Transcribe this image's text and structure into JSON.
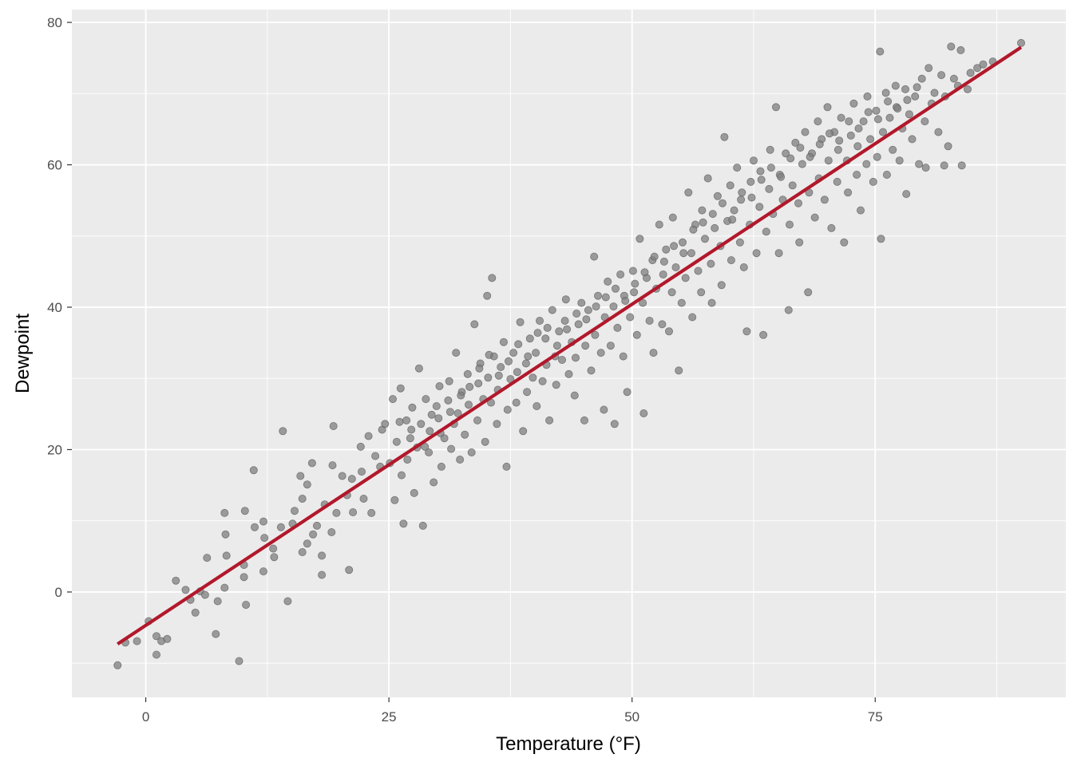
{
  "chart_data": {
    "type": "scatter",
    "title": "",
    "xlabel": "Temperature (°F)",
    "ylabel": "Dewpoint",
    "xlim": [
      -7.6,
      94.6
    ],
    "ylim": [
      -14.8,
      81.8
    ],
    "x_ticks": [
      0,
      25,
      50,
      75
    ],
    "y_ticks": [
      0,
      20,
      40,
      60,
      80
    ],
    "x_tick_labels": [
      "0",
      "25",
      "50",
      "75"
    ],
    "y_tick_labels": [
      "0",
      "20",
      "40",
      "60",
      "80"
    ],
    "grid": true,
    "legend": "none",
    "point_color": "#7f7f7f",
    "line_color": "#b2182b",
    "panel_background": "#ebebeb",
    "fit_line": {
      "type": "linear",
      "x": [
        -2.9,
        90.0
      ],
      "y": [
        -7.3,
        76.5
      ]
    },
    "points": [
      [
        -2.9,
        -10.3
      ],
      [
        -2.1,
        -7.1
      ],
      [
        -0.9,
        -6.9
      ],
      [
        0.3,
        -4.1
      ],
      [
        1.1,
        -6.2
      ],
      [
        1.1,
        -8.8
      ],
      [
        1.6,
        -6.9
      ],
      [
        2.2,
        -6.6
      ],
      [
        3.1,
        1.6
      ],
      [
        4.1,
        0.3
      ],
      [
        4.6,
        -1.1
      ],
      [
        5.1,
        -2.9
      ],
      [
        5.6,
        0.1
      ],
      [
        6.1,
        -0.4
      ],
      [
        6.3,
        4.8
      ],
      [
        7.2,
        -5.9
      ],
      [
        7.4,
        -1.3
      ],
      [
        8.1,
        11.1
      ],
      [
        8.2,
        8.1
      ],
      [
        8.3,
        5.1
      ],
      [
        8.1,
        0.6
      ],
      [
        9.6,
        -9.7
      ],
      [
        10.1,
        2.1
      ],
      [
        10.2,
        11.4
      ],
      [
        10.3,
        -1.8
      ],
      [
        10.1,
        3.8
      ],
      [
        11.1,
        17.1
      ],
      [
        11.2,
        9.1
      ],
      [
        12.1,
        9.9
      ],
      [
        12.2,
        7.6
      ],
      [
        12.1,
        2.9
      ],
      [
        13.1,
        6.1
      ],
      [
        13.2,
        4.9
      ],
      [
        13.9,
        9.1
      ],
      [
        14.1,
        22.6
      ],
      [
        14.6,
        -1.3
      ],
      [
        15.1,
        9.6
      ],
      [
        15.3,
        11.4
      ],
      [
        15.9,
        16.3
      ],
      [
        16.1,
        5.6
      ],
      [
        16.1,
        13.1
      ],
      [
        16.6,
        6.8
      ],
      [
        16.6,
        15.1
      ],
      [
        17.1,
        18.1
      ],
      [
        17.2,
        8.1
      ],
      [
        17.6,
        9.3
      ],
      [
        18.1,
        5.1
      ],
      [
        18.1,
        2.4
      ],
      [
        18.4,
        12.3
      ],
      [
        19.1,
        8.4
      ],
      [
        19.2,
        17.8
      ],
      [
        19.3,
        23.3
      ],
      [
        19.6,
        11.1
      ],
      [
        20.2,
        16.3
      ],
      [
        20.7,
        13.6
      ],
      [
        20.9,
        3.1
      ],
      [
        21.2,
        15.9
      ],
      [
        21.3,
        11.2
      ],
      [
        22.1,
        20.4
      ],
      [
        22.2,
        16.9
      ],
      [
        22.4,
        13.1
      ],
      [
        22.9,
        21.9
      ],
      [
        23.2,
        11.1
      ],
      [
        23.6,
        19.1
      ],
      [
        24.1,
        17.6
      ],
      [
        24.3,
        22.8
      ],
      [
        24.6,
        23.6
      ],
      [
        25.1,
        18.1
      ],
      [
        25.4,
        27.1
      ],
      [
        25.6,
        12.9
      ],
      [
        25.8,
        21.1
      ],
      [
        26.1,
        23.9
      ],
      [
        26.3,
        16.4
      ],
      [
        26.5,
        9.6
      ],
      [
        26.9,
        18.6
      ],
      [
        27.2,
        21.6
      ],
      [
        27.4,
        25.9
      ],
      [
        27.6,
        13.9
      ],
      [
        27.9,
        20.3
      ],
      [
        28.1,
        31.4
      ],
      [
        28.3,
        23.6
      ],
      [
        28.5,
        9.3
      ],
      [
        28.8,
        27.1
      ],
      [
        29.1,
        19.6
      ],
      [
        29.2,
        22.6
      ],
      [
        29.6,
        15.4
      ],
      [
        29.9,
        26.1
      ],
      [
        30.1,
        24.4
      ],
      [
        30.2,
        28.9
      ],
      [
        30.4,
        17.6
      ],
      [
        30.7,
        21.6
      ],
      [
        31.1,
        26.9
      ],
      [
        31.2,
        29.6
      ],
      [
        31.4,
        20.1
      ],
      [
        31.7,
        23.6
      ],
      [
        31.9,
        33.6
      ],
      [
        32.1,
        25.1
      ],
      [
        32.3,
        18.6
      ],
      [
        32.5,
        28.1
      ],
      [
        32.8,
        22.1
      ],
      [
        33.1,
        30.6
      ],
      [
        33.2,
        26.3
      ],
      [
        33.5,
        19.6
      ],
      [
        33.8,
        37.6
      ],
      [
        34.1,
        24.1
      ],
      [
        34.2,
        29.3
      ],
      [
        34.4,
        32.1
      ],
      [
        34.7,
        27.1
      ],
      [
        34.9,
        21.1
      ],
      [
        35.1,
        41.6
      ],
      [
        35.2,
        30.1
      ],
      [
        35.5,
        26.6
      ],
      [
        35.6,
        44.1
      ],
      [
        35.8,
        33.1
      ],
      [
        36.1,
        23.6
      ],
      [
        36.2,
        28.4
      ],
      [
        36.5,
        31.6
      ],
      [
        36.8,
        35.1
      ],
      [
        37.1,
        17.6
      ],
      [
        37.2,
        25.6
      ],
      [
        37.5,
        29.9
      ],
      [
        37.8,
        33.6
      ],
      [
        38.1,
        26.6
      ],
      [
        38.2,
        30.9
      ],
      [
        38.5,
        37.9
      ],
      [
        38.8,
        22.6
      ],
      [
        39.1,
        32.1
      ],
      [
        39.2,
        28.1
      ],
      [
        39.5,
        35.6
      ],
      [
        39.8,
        30.1
      ],
      [
        40.1,
        33.6
      ],
      [
        40.2,
        26.1
      ],
      [
        40.5,
        38.1
      ],
      [
        40.8,
        29.6
      ],
      [
        41.1,
        35.6
      ],
      [
        41.2,
        31.9
      ],
      [
        41.5,
        24.1
      ],
      [
        41.8,
        39.6
      ],
      [
        42.1,
        33.1
      ],
      [
        42.2,
        29.1
      ],
      [
        42.5,
        36.6
      ],
      [
        42.8,
        32.6
      ],
      [
        43.1,
        38.1
      ],
      [
        43.2,
        41.1
      ],
      [
        43.5,
        30.6
      ],
      [
        43.8,
        35.1
      ],
      [
        44.1,
        27.6
      ],
      [
        44.2,
        32.9
      ],
      [
        44.5,
        37.6
      ],
      [
        44.8,
        40.6
      ],
      [
        45.1,
        24.1
      ],
      [
        45.2,
        34.6
      ],
      [
        45.5,
        39.6
      ],
      [
        45.8,
        31.1
      ],
      [
        46.1,
        47.1
      ],
      [
        46.2,
        36.1
      ],
      [
        46.5,
        41.6
      ],
      [
        46.8,
        33.6
      ],
      [
        47.1,
        25.6
      ],
      [
        47.2,
        38.6
      ],
      [
        47.5,
        43.6
      ],
      [
        47.8,
        34.6
      ],
      [
        48.1,
        40.1
      ],
      [
        48.2,
        23.6
      ],
      [
        48.5,
        37.1
      ],
      [
        48.8,
        44.6
      ],
      [
        49.1,
        33.1
      ],
      [
        49.2,
        41.6
      ],
      [
        49.5,
        28.1
      ],
      [
        49.8,
        38.6
      ],
      [
        50.1,
        45.1
      ],
      [
        50.2,
        42.1
      ],
      [
        50.5,
        36.1
      ],
      [
        50.8,
        49.6
      ],
      [
        51.1,
        40.6
      ],
      [
        51.2,
        25.1
      ],
      [
        51.5,
        44.1
      ],
      [
        51.8,
        38.1
      ],
      [
        52.1,
        46.6
      ],
      [
        52.2,
        33.6
      ],
      [
        52.5,
        42.6
      ],
      [
        52.8,
        51.6
      ],
      [
        53.1,
        37.6
      ],
      [
        53.2,
        44.6
      ],
      [
        53.5,
        48.1
      ],
      [
        53.8,
        36.6
      ],
      [
        54.1,
        42.1
      ],
      [
        54.2,
        52.6
      ],
      [
        54.5,
        45.6
      ],
      [
        54.8,
        31.1
      ],
      [
        55.1,
        40.6
      ],
      [
        55.2,
        49.1
      ],
      [
        55.5,
        44.1
      ],
      [
        55.8,
        56.1
      ],
      [
        56.1,
        47.6
      ],
      [
        56.2,
        38.6
      ],
      [
        56.5,
        51.6
      ],
      [
        56.8,
        45.1
      ],
      [
        57.1,
        42.1
      ],
      [
        57.2,
        53.6
      ],
      [
        57.5,
        49.6
      ],
      [
        57.8,
        58.1
      ],
      [
        58.1,
        46.1
      ],
      [
        58.2,
        40.6
      ],
      [
        58.5,
        51.1
      ],
      [
        58.8,
        55.6
      ],
      [
        59.1,
        48.6
      ],
      [
        59.2,
        43.1
      ],
      [
        59.5,
        63.9
      ],
      [
        59.8,
        52.1
      ],
      [
        60.1,
        57.1
      ],
      [
        60.2,
        46.6
      ],
      [
        60.5,
        53.6
      ],
      [
        60.8,
        59.6
      ],
      [
        61.1,
        49.1
      ],
      [
        61.2,
        55.1
      ],
      [
        61.5,
        45.6
      ],
      [
        61.8,
        36.6
      ],
      [
        62.1,
        51.6
      ],
      [
        62.2,
        57.6
      ],
      [
        62.5,
        60.6
      ],
      [
        62.8,
        47.6
      ],
      [
        63.1,
        54.1
      ],
      [
        63.2,
        59.1
      ],
      [
        63.5,
        36.1
      ],
      [
        63.8,
        50.6
      ],
      [
        64.1,
        56.6
      ],
      [
        64.2,
        62.1
      ],
      [
        64.5,
        53.1
      ],
      [
        64.8,
        68.1
      ],
      [
        65.1,
        47.6
      ],
      [
        65.2,
        58.6
      ],
      [
        65.5,
        55.1
      ],
      [
        65.8,
        61.6
      ],
      [
        66.1,
        39.6
      ],
      [
        66.2,
        51.6
      ],
      [
        66.5,
        57.1
      ],
      [
        66.8,
        63.1
      ],
      [
        67.1,
        54.6
      ],
      [
        67.2,
        49.1
      ],
      [
        67.5,
        60.1
      ],
      [
        67.8,
        64.6
      ],
      [
        68.1,
        42.1
      ],
      [
        68.2,
        56.1
      ],
      [
        68.5,
        61.6
      ],
      [
        68.8,
        52.6
      ],
      [
        69.1,
        66.1
      ],
      [
        69.2,
        58.1
      ],
      [
        69.5,
        63.6
      ],
      [
        69.8,
        55.1
      ],
      [
        70.1,
        68.1
      ],
      [
        70.2,
        60.6
      ],
      [
        70.5,
        51.1
      ],
      [
        70.8,
        64.6
      ],
      [
        71.1,
        57.6
      ],
      [
        71.2,
        62.1
      ],
      [
        71.5,
        66.6
      ],
      [
        71.8,
        49.1
      ],
      [
        72.1,
        60.6
      ],
      [
        72.2,
        56.1
      ],
      [
        72.5,
        64.1
      ],
      [
        72.8,
        68.6
      ],
      [
        73.1,
        58.6
      ],
      [
        73.2,
        62.6
      ],
      [
        73.5,
        53.6
      ],
      [
        73.8,
        66.1
      ],
      [
        74.1,
        60.1
      ],
      [
        74.2,
        69.6
      ],
      [
        74.5,
        63.6
      ],
      [
        74.8,
        57.6
      ],
      [
        75.1,
        67.6
      ],
      [
        75.2,
        61.1
      ],
      [
        75.5,
        75.9
      ],
      [
        75.6,
        49.6
      ],
      [
        75.8,
        64.6
      ],
      [
        76.1,
        70.1
      ],
      [
        76.2,
        58.6
      ],
      [
        76.5,
        66.6
      ],
      [
        76.8,
        62.1
      ],
      [
        77.1,
        71.1
      ],
      [
        77.2,
        68.1
      ],
      [
        77.5,
        60.6
      ],
      [
        77.8,
        65.1
      ],
      [
        78.1,
        70.6
      ],
      [
        78.2,
        55.9
      ],
      [
        78.5,
        67.1
      ],
      [
        78.8,
        63.6
      ],
      [
        79.1,
        69.6
      ],
      [
        79.5,
        60.1
      ],
      [
        79.8,
        72.1
      ],
      [
        80.1,
        66.1
      ],
      [
        80.2,
        59.6
      ],
      [
        80.5,
        73.6
      ],
      [
        80.8,
        68.6
      ],
      [
        81.1,
        70.1
      ],
      [
        81.5,
        64.6
      ],
      [
        81.8,
        72.6
      ],
      [
        82.1,
        59.9
      ],
      [
        82.2,
        69.6
      ],
      [
        82.5,
        62.6
      ],
      [
        82.8,
        76.6
      ],
      [
        83.1,
        72.1
      ],
      [
        83.5,
        71.1
      ],
      [
        83.8,
        76.1
      ],
      [
        83.9,
        59.9
      ],
      [
        84.5,
        70.6
      ],
      [
        84.8,
        72.9
      ],
      [
        85.5,
        73.6
      ],
      [
        86.1,
        74.1
      ],
      [
        87.1,
        74.5
      ],
      [
        90.0,
        77.1
      ],
      [
        26.2,
        28.6
      ],
      [
        26.8,
        24.1
      ],
      [
        27.3,
        22.8
      ],
      [
        28.7,
        20.4
      ],
      [
        29.4,
        24.9
      ],
      [
        30.3,
        22.3
      ],
      [
        31.3,
        25.3
      ],
      [
        32.4,
        27.6
      ],
      [
        33.3,
        28.8
      ],
      [
        34.3,
        31.4
      ],
      [
        35.3,
        33.3
      ],
      [
        36.3,
        30.4
      ],
      [
        37.3,
        32.4
      ],
      [
        38.3,
        34.8
      ],
      [
        39.3,
        33.1
      ],
      [
        40.3,
        36.4
      ],
      [
        41.3,
        37.1
      ],
      [
        42.3,
        34.6
      ],
      [
        43.3,
        36.9
      ],
      [
        44.3,
        39.1
      ],
      [
        45.3,
        38.3
      ],
      [
        46.3,
        40.1
      ],
      [
        47.3,
        41.4
      ],
      [
        48.3,
        42.6
      ],
      [
        49.3,
        40.9
      ],
      [
        50.3,
        43.3
      ],
      [
        51.3,
        44.9
      ],
      [
        52.3,
        47.1
      ],
      [
        53.3,
        46.4
      ],
      [
        54.3,
        48.6
      ],
      [
        55.3,
        47.6
      ],
      [
        56.3,
        50.9
      ],
      [
        57.3,
        51.9
      ],
      [
        58.3,
        53.1
      ],
      [
        59.3,
        54.6
      ],
      [
        60.3,
        52.3
      ],
      [
        61.3,
        56.1
      ],
      [
        62.3,
        55.4
      ],
      [
        63.3,
        57.9
      ],
      [
        64.3,
        59.6
      ],
      [
        65.3,
        58.3
      ],
      [
        66.3,
        60.9
      ],
      [
        67.3,
        62.4
      ],
      [
        68.3,
        61.1
      ],
      [
        69.3,
        62.9
      ],
      [
        70.3,
        64.4
      ],
      [
        71.3,
        63.4
      ],
      [
        72.3,
        66.1
      ],
      [
        73.3,
        65.1
      ],
      [
        74.3,
        67.4
      ],
      [
        75.3,
        66.4
      ],
      [
        76.3,
        68.9
      ],
      [
        77.3,
        67.9
      ],
      [
        78.3,
        69.1
      ],
      [
        79.3,
        70.9
      ]
    ]
  }
}
